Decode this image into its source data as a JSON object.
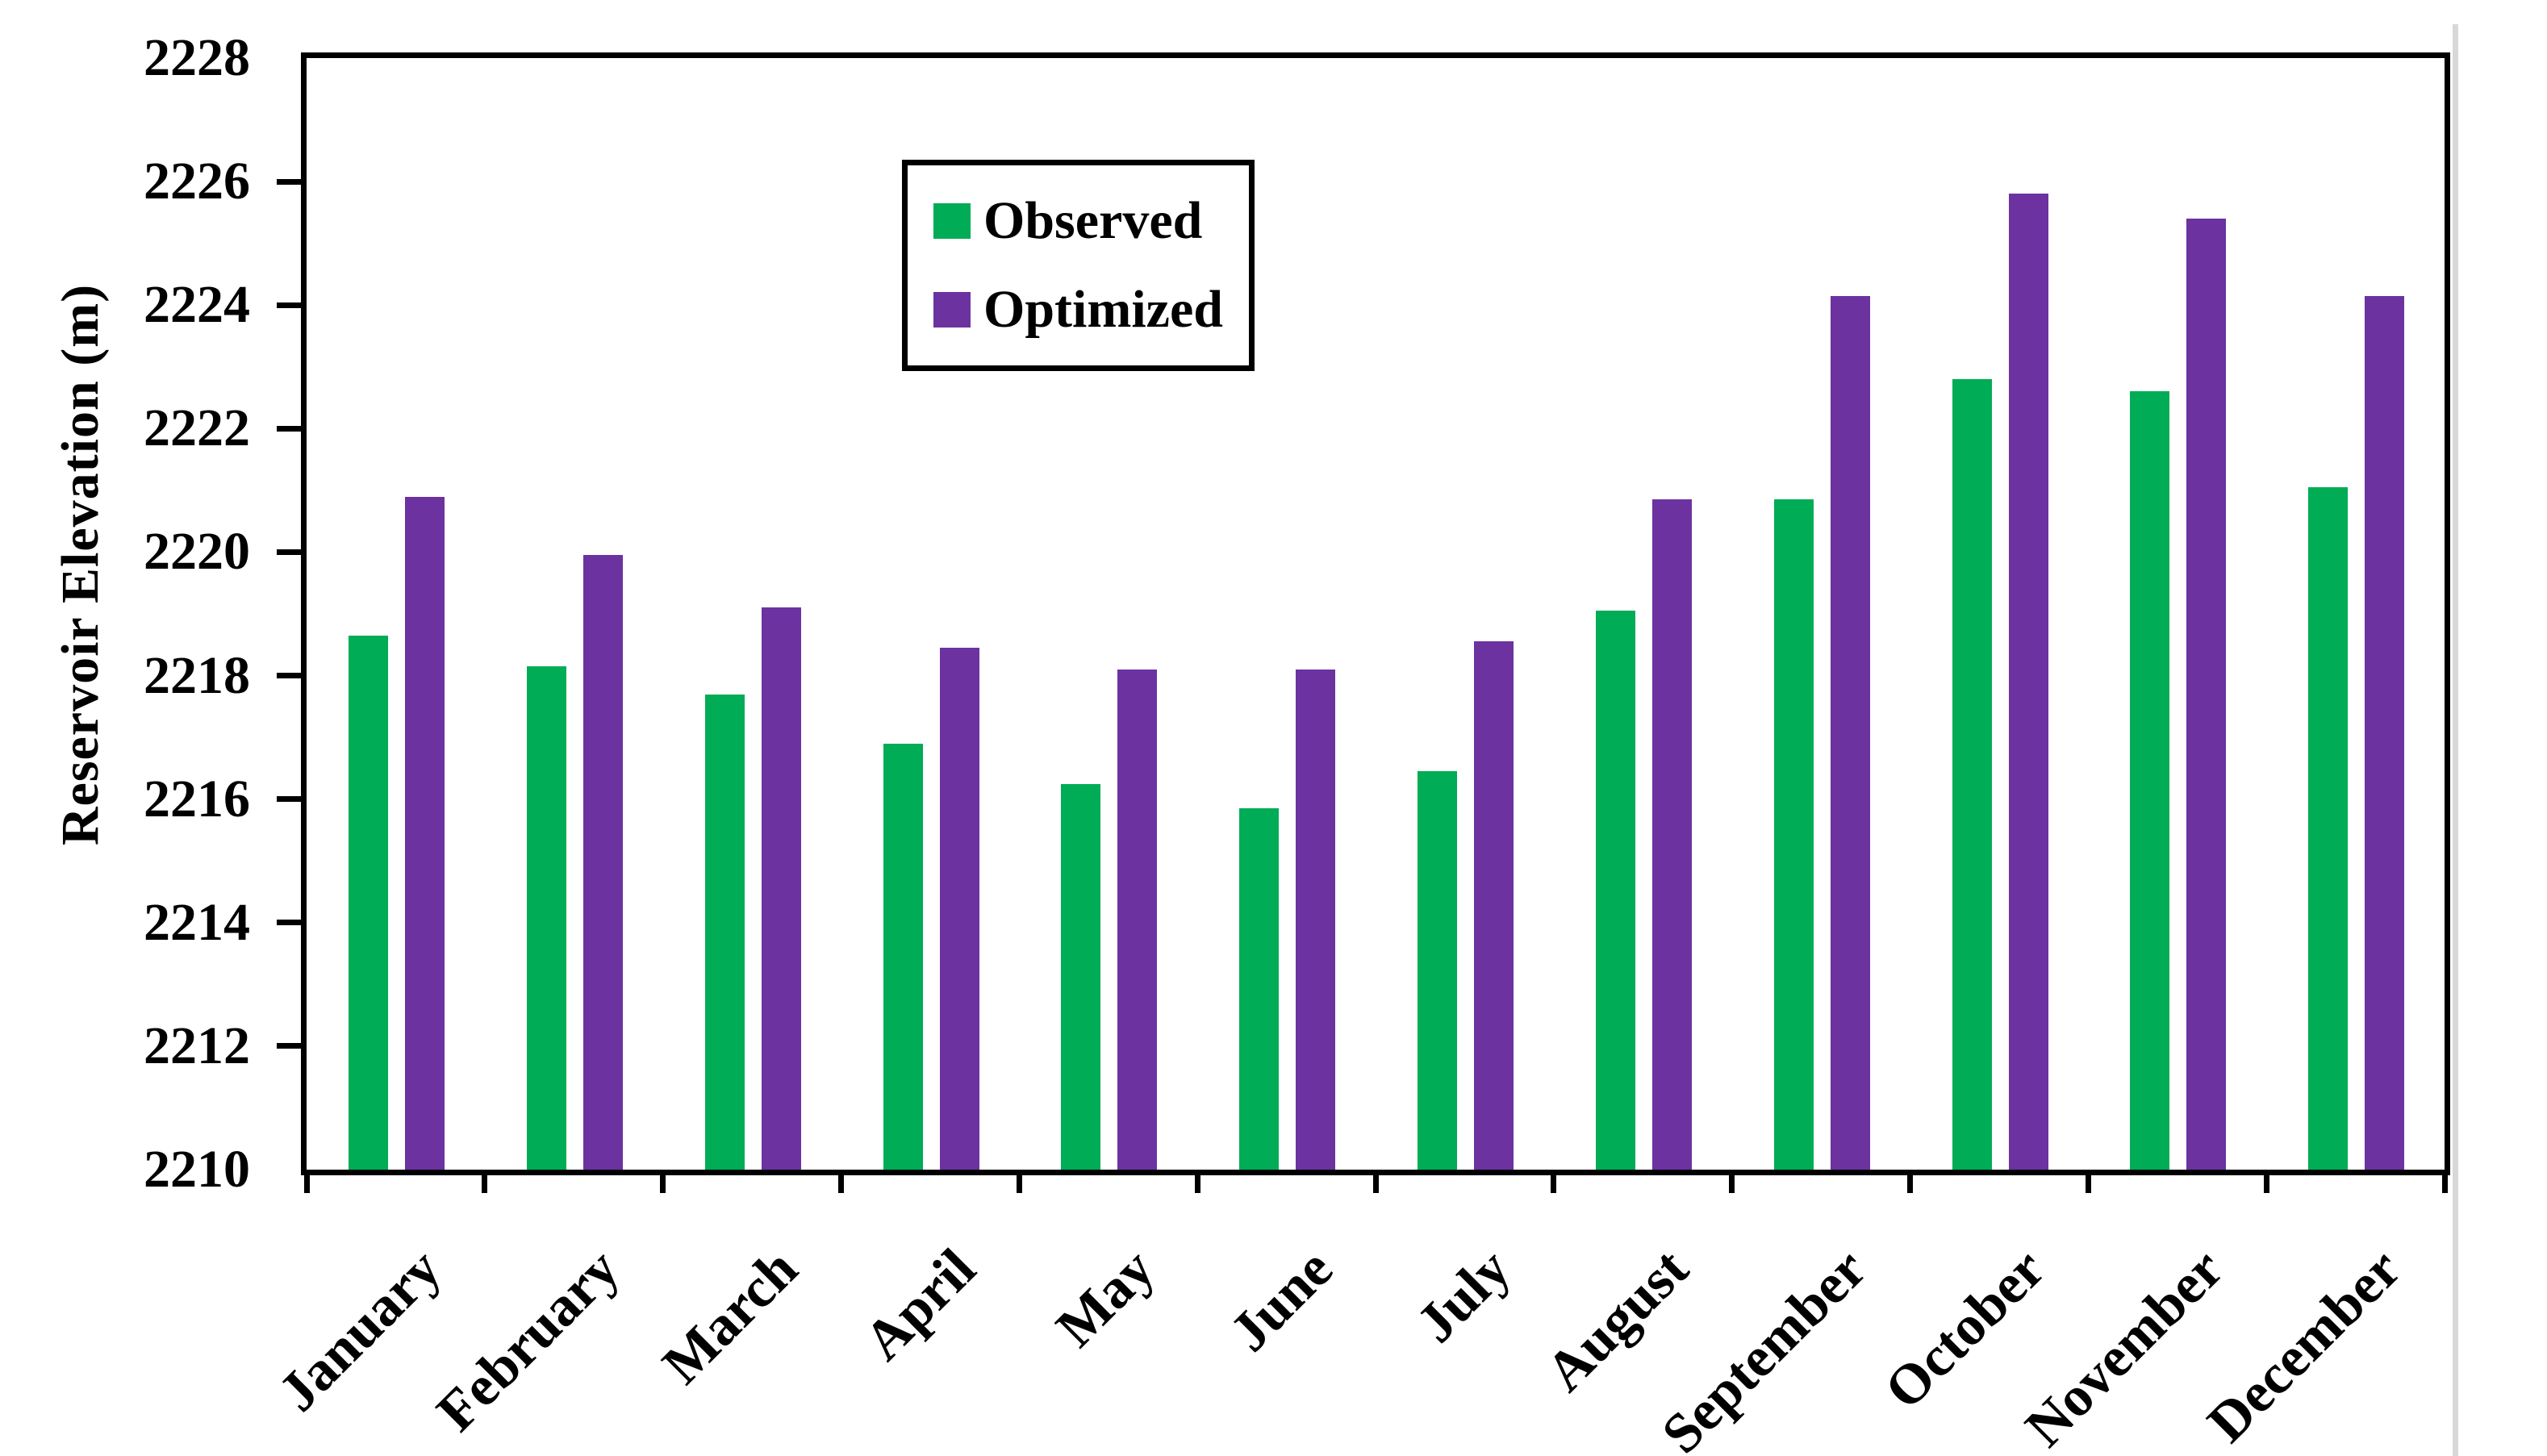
{
  "chart_data": {
    "type": "bar",
    "title": "",
    "xlabel": "",
    "ylabel": "Reservoir Elevation (m)",
    "ylim": [
      2210,
      2228
    ],
    "ytick_step": 2,
    "yticks": [
      2210,
      2212,
      2214,
      2216,
      2218,
      2220,
      2222,
      2224,
      2226,
      2228
    ],
    "categories": [
      "January",
      "February",
      "March",
      "April",
      "May",
      "June",
      "July",
      "August",
      "September",
      "October",
      "November",
      "December"
    ],
    "series": [
      {
        "name": "Observed",
        "color": "#00AC55",
        "values": [
          2218.65,
          2218.15,
          2217.7,
          2216.9,
          2216.25,
          2215.85,
          2216.45,
          2219.05,
          2220.85,
          2222.8,
          2222.6,
          2221.05
        ]
      },
      {
        "name": "Optimized",
        "color": "#6C32A0",
        "values": [
          2220.9,
          2219.95,
          2219.1,
          2218.45,
          2218.1,
          2218.1,
          2218.55,
          2220.85,
          2224.15,
          2225.8,
          2225.4,
          2224.15
        ]
      }
    ],
    "legend_position": "inside-top-center-left",
    "grid": false,
    "bar_edge_color": "none",
    "axis_color": "#000000"
  }
}
